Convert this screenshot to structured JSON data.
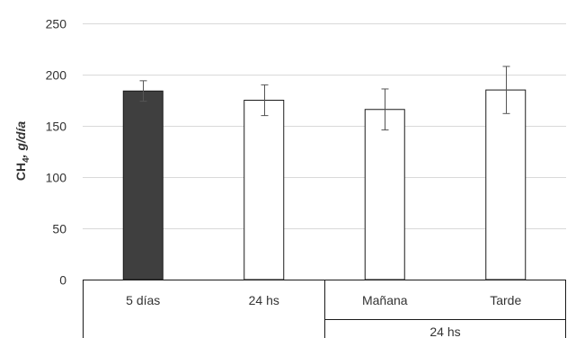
{
  "chart_data": {
    "type": "bar",
    "ylabel": "CH4, g/día",
    "ylabel_parts": {
      "base": "CH",
      "subscript": "4",
      "rest": ", g/día"
    },
    "ylim": [
      0,
      250
    ],
    "yticks": [
      0,
      50,
      100,
      150,
      200,
      250
    ],
    "ytick_labels": [
      "0",
      "50",
      "100",
      "150",
      "200",
      "250"
    ],
    "grid": true,
    "categories": [
      "5 días",
      "24 hs",
      "Mañana",
      "Tarde"
    ],
    "group_label": "24 hs",
    "values": [
      184,
      175,
      166,
      185
    ],
    "error": [
      10,
      15,
      20,
      23
    ],
    "bar_colors": [
      "#3f3f3f",
      "#ffffff",
      "#ffffff",
      "#ffffff"
    ]
  }
}
